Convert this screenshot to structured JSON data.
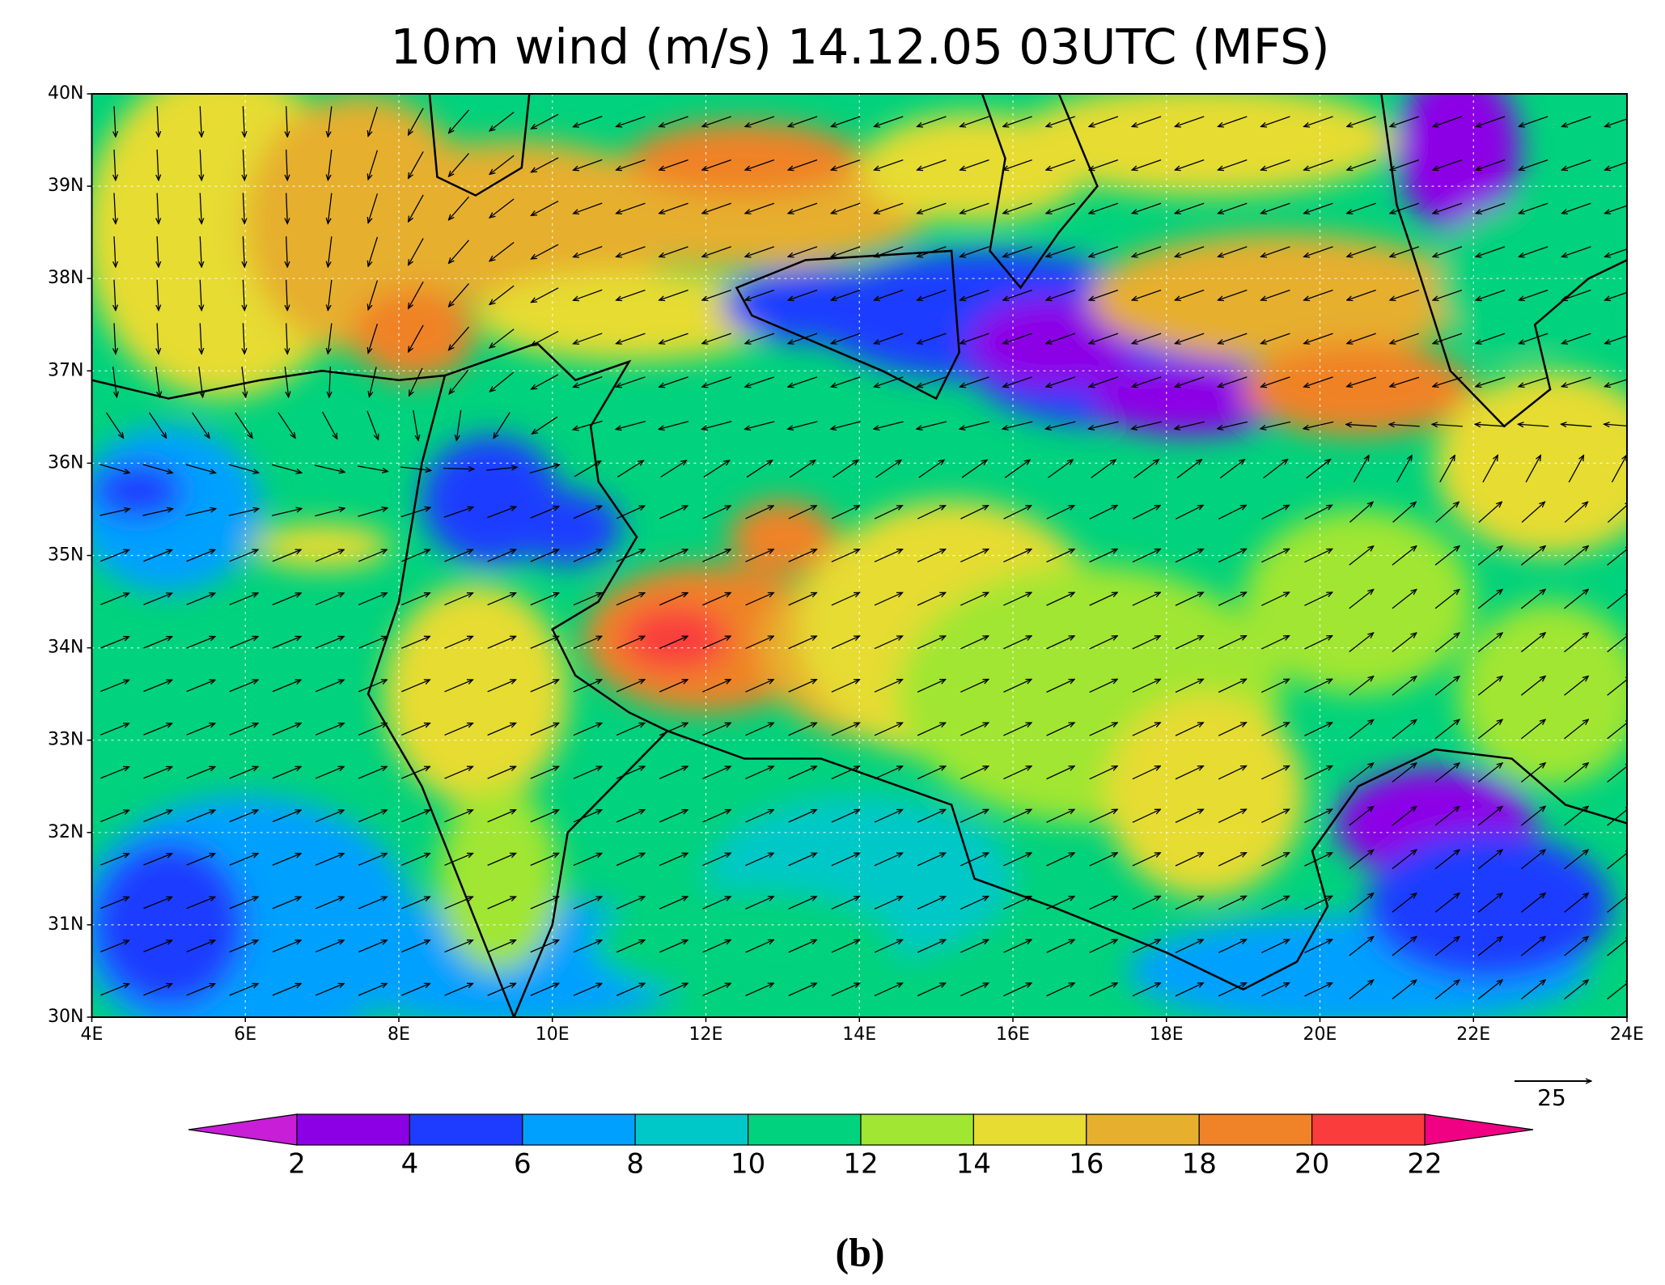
{
  "title": "10m wind (m/s) 14.12.05 03UTC (MFS)",
  "map": {
    "lon_ticks": [
      {
        "value": 4,
        "label": "4E"
      },
      {
        "value": 6,
        "label": "6E"
      },
      {
        "value": 8,
        "label": "8E"
      },
      {
        "value": 10,
        "label": "10E"
      },
      {
        "value": 12,
        "label": "12E"
      },
      {
        "value": 14,
        "label": "14E"
      },
      {
        "value": 16,
        "label": "16E"
      },
      {
        "value": 18,
        "label": "18E"
      },
      {
        "value": 20,
        "label": "20E"
      },
      {
        "value": 22,
        "label": "22E"
      },
      {
        "value": 24,
        "label": "24E"
      }
    ],
    "lat_ticks": [
      {
        "value": 30,
        "label": "30N"
      },
      {
        "value": 31,
        "label": "31N"
      },
      {
        "value": 32,
        "label": "32N"
      },
      {
        "value": 33,
        "label": "33N"
      },
      {
        "value": 34,
        "label": "34N"
      },
      {
        "value": 35,
        "label": "35N"
      },
      {
        "value": 36,
        "label": "36N"
      },
      {
        "value": 37,
        "label": "37N"
      },
      {
        "value": 38,
        "label": "38N"
      },
      {
        "value": 39,
        "label": "39N"
      },
      {
        "value": 40,
        "label": "40N"
      }
    ]
  },
  "colorbar": {
    "levels": [
      2,
      4,
      6,
      8,
      10,
      12,
      14,
      16,
      18,
      20,
      22
    ],
    "colors": [
      "#c81ed8",
      "#8c00e6",
      "#1e3cff",
      "#00a0ff",
      "#00c8c8",
      "#00d27d",
      "#a0e632",
      "#e6dc32",
      "#e6af2d",
      "#f08228",
      "#fa3c3c",
      "#f00082"
    ]
  },
  "reference_vector": {
    "value": 25
  },
  "caption": "(b)"
}
